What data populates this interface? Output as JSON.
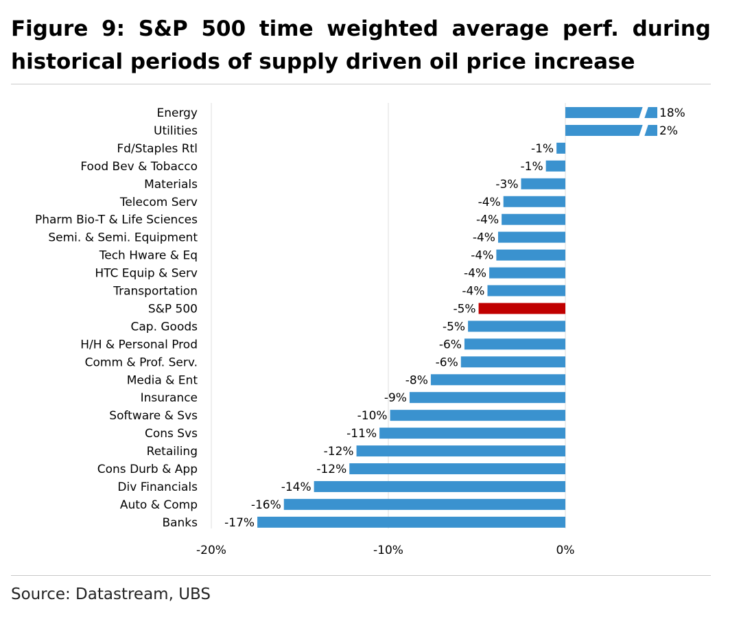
{
  "figure": {
    "title": "Figure 9: S&P 500 time weighted average perf. during historical periods of supply driven oil price increase",
    "source": "Source: Datastream, UBS"
  },
  "colors": {
    "bar": "#3a92cf",
    "highlight": "#c00000",
    "gridline": "#dcdcdc",
    "rule": "#c8c8c8"
  },
  "chart_data": {
    "type": "bar",
    "orientation": "horizontal",
    "title": "Figure 9: S&P 500 time weighted average perf. during historical periods of supply driven oil price increase",
    "xlabel": "",
    "ylabel": "",
    "xlim": [
      -0.2,
      0.0
    ],
    "x_ticks": [
      "-20%",
      "-10%",
      "0%"
    ],
    "x_tick_values": [
      -0.2,
      -0.1,
      0.0
    ],
    "grid": "vertical",
    "axis_break": true,
    "highlight_category": "S&P 500",
    "categories": [
      "Energy",
      "Utilities",
      "Fd/Staples Rtl",
      "Food Bev & Tobacco",
      "Materials",
      "Telecom Serv",
      "Pharm Bio-T & Life Sciences",
      "Semi. & Semi. Equipment",
      "Tech Hware & Eq",
      "HTC Equip & Serv",
      "Transportation",
      "S&P 500",
      "Cap. Goods",
      "H/H & Personal Prod",
      "Comm & Prof. Serv.",
      "Media & Ent",
      "Insurance",
      "Software & Svs",
      "Cons Svs",
      "Retailing",
      "Cons Durb & App",
      "Div Financials",
      "Auto & Comp",
      "Banks"
    ],
    "values": [
      0.18,
      0.017,
      -0.005,
      -0.011,
      -0.025,
      -0.035,
      -0.036,
      -0.038,
      -0.039,
      -0.043,
      -0.044,
      -0.049,
      -0.055,
      -0.057,
      -0.059,
      -0.076,
      -0.088,
      -0.099,
      -0.105,
      -0.118,
      -0.122,
      -0.142,
      -0.159,
      -0.174
    ],
    "labels": [
      "18%",
      "2%",
      "-1%",
      "-1%",
      "-3%",
      "-4%",
      "-4%",
      "-4%",
      "-4%",
      "-4%",
      "-4%",
      "-5%",
      "-5%",
      "-6%",
      "-6%",
      "-8%",
      "-9%",
      "-10%",
      "-11%",
      "-12%",
      "-12%",
      "-14%",
      "-16%",
      "-17%"
    ]
  }
}
